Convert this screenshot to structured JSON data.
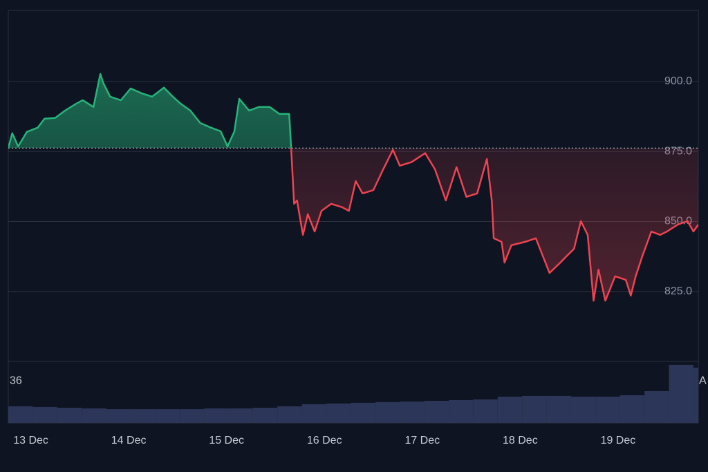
{
  "chart_data": {
    "type": "baseline-line",
    "x": [
      12.77,
      12.81,
      12.87,
      12.96,
      13.07,
      13.14,
      13.25,
      13.35,
      13.46,
      13.53,
      13.64,
      13.71,
      13.74,
      13.81,
      13.92,
      14.02,
      14.13,
      14.24,
      14.36,
      14.45,
      14.53,
      14.63,
      14.73,
      14.84,
      14.94,
      15.01,
      15.08,
      15.13,
      15.23,
      15.33,
      15.44,
      15.54,
      15.64,
      15.66,
      15.69,
      15.72,
      15.78,
      15.83,
      15.9,
      15.97,
      16.07,
      16.18,
      16.25,
      16.32,
      16.39,
      16.5,
      16.6,
      16.7,
      16.77,
      16.89,
      17.03,
      17.13,
      17.24,
      17.35,
      17.45,
      17.56,
      17.66,
      17.71,
      17.73,
      17.81,
      17.84,
      17.91,
      18.05,
      18.16,
      18.23,
      18.3,
      18.41,
      18.48,
      18.55,
      18.62,
      18.69,
      18.75,
      18.8,
      18.87,
      18.97,
      19.08,
      19.13,
      19.18,
      19.25,
      19.34,
      19.43,
      19.5,
      19.61,
      19.71,
      19.77,
      19.82
    ],
    "values": [
      876.3,
      881.5,
      876.8,
      882,
      883.5,
      886.7,
      887,
      889.6,
      892,
      893.3,
      890.9,
      902.7,
      899.5,
      894.6,
      893.3,
      897.5,
      895.8,
      894.6,
      897.8,
      894.6,
      892.1,
      889.6,
      885.2,
      883.5,
      882.2,
      876.8,
      882.2,
      893.8,
      889.6,
      890.9,
      890.9,
      888.4,
      888.4,
      876,
      856.3,
      857.5,
      845.2,
      852.6,
      846.4,
      853.8,
      856.3,
      855.1,
      853.8,
      864.4,
      860,
      861.2,
      868.6,
      875.6,
      869.9,
      871.2,
      874.4,
      868.6,
      857.5,
      869.4,
      858.8,
      860,
      872.3,
      857.5,
      844,
      842.7,
      835.3,
      841.5,
      842.7,
      844,
      837.8,
      831.6,
      835.3,
      837.8,
      840.2,
      850.1,
      845.2,
      821.7,
      832.8,
      821.7,
      830.4,
      829.1,
      823.5,
      830.4,
      837.8,
      846.4,
      845.2,
      846.4,
      848.9,
      850.1,
      846.4,
      848.9
    ],
    "baseline": 876.2,
    "up_color": "#26b47a",
    "down_color": "#ef4351",
    "xlim": [
      12.77,
      19.82
    ],
    "xticks": [
      {
        "value": 13,
        "label": "13 Dec"
      },
      {
        "value": 14,
        "label": "14 Dec"
      },
      {
        "value": 15,
        "label": "15 Dec"
      },
      {
        "value": 16,
        "label": "16 Dec"
      },
      {
        "value": 17,
        "label": "17 Dec"
      },
      {
        "value": 18,
        "label": "18 Dec"
      },
      {
        "value": 19,
        "label": "19 Dec"
      }
    ],
    "ylim": [
      800,
      925.4
    ],
    "yticks": [
      {
        "value": 825,
        "label": "825.0"
      },
      {
        "value": 850,
        "label": "850.0"
      },
      {
        "value": 875,
        "label": "875.0"
      },
      {
        "value": 900,
        "label": "900.0"
      }
    ],
    "grid": true,
    "volume": {
      "color": "#2c3658",
      "x": [
        12.77,
        13.02,
        13.27,
        13.52,
        13.77,
        14.02,
        14.27,
        14.52,
        14.77,
        15.02,
        15.27,
        15.52,
        15.77,
        16.02,
        16.27,
        16.52,
        16.77,
        17.02,
        17.27,
        17.52,
        17.77,
        18.02,
        18.27,
        18.52,
        18.77,
        19.02,
        19.27,
        19.52,
        19.77
      ],
      "values": [
        14.2,
        13.6,
        13,
        12.4,
        11.8,
        11.8,
        11.8,
        11.8,
        12.4,
        12.4,
        13,
        14.2,
        16,
        16.6,
        17.2,
        17.8,
        18.3,
        18.9,
        19.5,
        20.1,
        22.5,
        23.1,
        23.1,
        22.5,
        22.5,
        23.7,
        27.2,
        49.7,
        47.3
      ],
      "ylim": [
        0,
        52.6
      ],
      "yticks": [
        36
      ],
      "badge": "A"
    }
  }
}
